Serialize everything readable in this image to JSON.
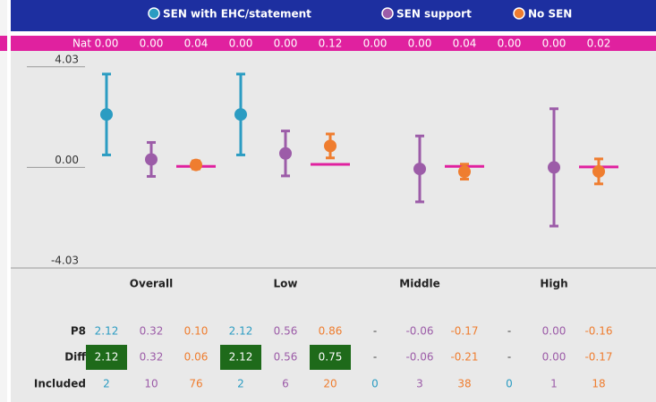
{
  "chart_data": {
    "type": "errorbar",
    "legend": [
      "SEN with EHC/statement",
      "SEN support",
      "No SEN"
    ],
    "nat_title": "Nat",
    "nat": [
      0,
      0,
      0.04,
      0,
      0,
      0.12,
      0,
      0,
      0.04,
      0,
      0,
      0.02
    ],
    "nat_labels": [
      "0.00",
      "0.00",
      "0.04",
      "0.00",
      "0.00",
      "0.12",
      "0.00",
      "0.00",
      "0.04",
      "0.00",
      "0.00",
      "0.02"
    ],
    "categories": [
      "Overall",
      "Low",
      "Middle",
      "High"
    ],
    "series": [
      {
        "name": "SEN with EHC/statement",
        "color": "#2b9cc2",
        "values": [
          2.12,
          2.12,
          null,
          null
        ],
        "errors": [
          1.62,
          1.62,
          null,
          null
        ]
      },
      {
        "name": "SEN support",
        "color": "#9c5ca8",
        "values": [
          0.32,
          0.56,
          -0.06,
          0
        ],
        "errors": [
          0.68,
          0.9,
          1.32,
          2.35
        ]
      },
      {
        "name": "No SEN",
        "color": "#ef7d2f",
        "values": [
          0.1,
          0.86,
          -0.17,
          -0.16
        ],
        "errors": [
          0.16,
          0.48,
          0.3,
          0.5
        ],
        "nat_line": true
      }
    ],
    "ylim": [
      -4.03,
      4.56
    ],
    "yticks": [
      4.03,
      {
        "value": 0,
        "label": "0.00"
      },
      -4.03
    ],
    "table": {
      "rows": [
        {
          "label": "P8",
          "cells": [
            "2.12",
            "0.32",
            "0.10",
            "2.12",
            "0.56",
            "0.86",
            "-",
            "-0.06",
            "-0.17",
            "-",
            "0.00",
            "-0.16"
          ]
        },
        {
          "label": "Diff",
          "cells": [
            "2.12",
            "0.32",
            "0.06",
            "2.12",
            "0.56",
            "0.75",
            "-",
            "-0.06",
            "-0.21",
            "-",
            "0.00",
            "-0.17"
          ],
          "highlight": [
            true,
            false,
            false,
            true,
            false,
            true,
            false,
            false,
            false,
            false,
            false,
            false
          ]
        },
        {
          "label": "Included",
          "cells": [
            "2",
            "10",
            "76",
            "2",
            "6",
            "20",
            "0",
            "3",
            "38",
            "0",
            "1",
            "18"
          ]
        }
      ]
    }
  }
}
